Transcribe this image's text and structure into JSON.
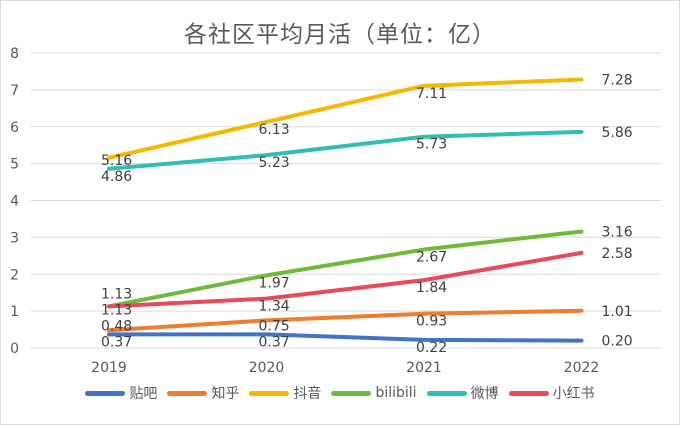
{
  "chart_data": {
    "type": "line",
    "title": "各社区平均月活（单位：亿）",
    "categories": [
      "2019",
      "2020",
      "2021",
      "2022"
    ],
    "ylim": [
      0,
      8
    ],
    "yticks": [
      "0",
      "1",
      "2",
      "3",
      "4",
      "5",
      "6",
      "7",
      "8"
    ],
    "grid": true,
    "legend_position": "bottom",
    "series": [
      {
        "name": "贴吧",
        "color": "#4472c4",
        "values": [
          0.37,
          0.37,
          0.22,
          0.2
        ],
        "labels": [
          "0.37",
          "0.37",
          "0.22",
          "0.20"
        ]
      },
      {
        "name": "知乎",
        "color": "#ed7d31",
        "values": [
          0.48,
          0.75,
          0.93,
          1.01
        ],
        "labels": [
          "0.48",
          "0.75",
          "0.93",
          "1.01"
        ]
      },
      {
        "name": "抖音",
        "color": "#f4b800",
        "values": [
          5.16,
          6.13,
          7.11,
          7.28
        ],
        "labels": [
          "5.16",
          "6.13",
          "7.11",
          "7.28"
        ]
      },
      {
        "name": "bilibili",
        "color": "#70b93d",
        "values": [
          1.13,
          1.97,
          2.67,
          3.16
        ],
        "labels": [
          "1.13",
          "1.97",
          "2.67",
          "3.16"
        ]
      },
      {
        "name": "微博",
        "color": "#2fbfb0",
        "values": [
          4.86,
          5.23,
          5.73,
          5.86
        ],
        "labels": [
          "4.86",
          "5.23",
          "5.73",
          "5.86"
        ]
      },
      {
        "name": "小红书",
        "color": "#e64a5c",
        "values": [
          1.13,
          1.34,
          1.84,
          2.58
        ],
        "labels": [
          "1.13",
          "1.34",
          "1.84",
          "2.58"
        ]
      }
    ]
  }
}
